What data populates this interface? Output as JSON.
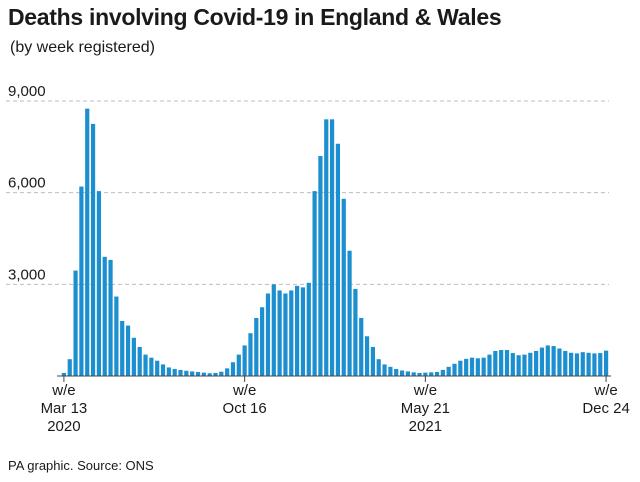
{
  "title": "Deaths involving Covid-19 in England & Wales",
  "subtitle": "(by week registered)",
  "source": "PA graphic. Source: ONS",
  "colors": {
    "bar": "#1b8fcf",
    "grid": "#bdbdbd",
    "axis": "#444444",
    "text": "#1a1a1a"
  },
  "chart_data": {
    "type": "bar",
    "title": "Deaths involving Covid-19 in England & Wales",
    "subtitle": "(by week registered)",
    "ylim": [
      0,
      9000
    ],
    "yticks": [
      3000,
      6000,
      9000
    ],
    "ytick_labels": [
      "3,000",
      "6,000",
      "9,000"
    ],
    "grid": "horizontal-dashed",
    "xticks": [
      {
        "index": 0,
        "lines": [
          "w/e",
          "Mar 13",
          "2020"
        ]
      },
      {
        "index": 31,
        "lines": [
          "w/e",
          "Oct 16"
        ]
      },
      {
        "index": 62,
        "lines": [
          "w/e",
          "May 21",
          "2021"
        ]
      },
      {
        "index": 93,
        "lines": [
          "w/e",
          "Dec 24"
        ]
      }
    ],
    "values": [
      100,
      550,
      3450,
      6200,
      8750,
      8250,
      6050,
      3900,
      3800,
      2600,
      1800,
      1650,
      1250,
      950,
      700,
      600,
      500,
      380,
      280,
      230,
      200,
      170,
      150,
      130,
      110,
      90,
      100,
      140,
      250,
      450,
      700,
      1000,
      1400,
      1900,
      2250,
      2700,
      3000,
      2800,
      2700,
      2800,
      2950,
      2900,
      3050,
      6050,
      7200,
      8400,
      8400,
      7600,
      5800,
      4100,
      2850,
      1900,
      1300,
      950,
      550,
      380,
      300,
      230,
      180,
      150,
      120,
      100,
      110,
      120,
      130,
      200,
      300,
      400,
      500,
      560,
      600,
      580,
      600,
      700,
      820,
      850,
      850,
      750,
      680,
      700,
      760,
      820,
      930,
      1000,
      980,
      900,
      820,
      760,
      740,
      780,
      760,
      740,
      750,
      830
    ]
  }
}
